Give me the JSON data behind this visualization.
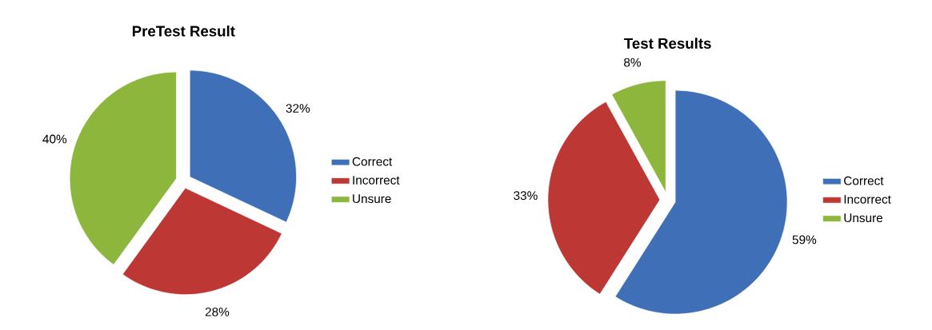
{
  "chart_data": [
    {
      "type": "pie",
      "title": "PreTest Result",
      "categories": [
        "Correct",
        "Incorrect",
        "Unsure"
      ],
      "values": [
        32,
        28,
        40
      ],
      "colors": [
        "#3f6fb6",
        "#bd3835",
        "#8cb63c"
      ],
      "value_labels": [
        "32%",
        "28%",
        "40%"
      ],
      "legend": "right"
    },
    {
      "type": "pie",
      "title": "Test Results",
      "categories": [
        "Correct",
        "Incorrect",
        "Unsure"
      ],
      "values": [
        59,
        33,
        8
      ],
      "colors": [
        "#3f6fb6",
        "#bd3835",
        "#8cb63c"
      ],
      "value_labels": [
        "59%",
        "33%",
        "8%"
      ],
      "legend": "right"
    }
  ]
}
